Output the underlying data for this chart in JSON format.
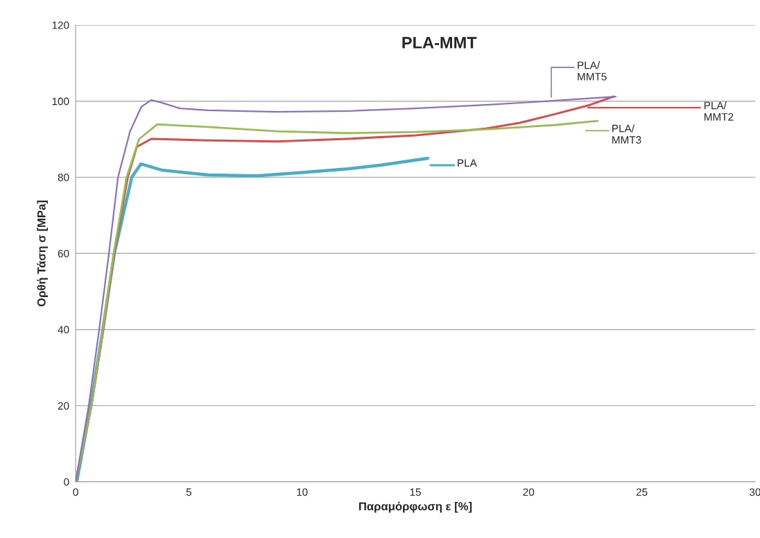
{
  "chart_data": {
    "type": "line",
    "title": "PLA-MMT",
    "xlabel": "Παραμόρφωση ε [%]",
    "ylabel": "Ορθή Τάση σ [MPa]",
    "xlim": [
      0,
      30
    ],
    "xticks": [
      0,
      5,
      10,
      15,
      20,
      25,
      30
    ],
    "ylim": [
      0,
      120
    ],
    "yticks": [
      0,
      20,
      40,
      60,
      80,
      100,
      120
    ],
    "grid": "y",
    "legend": "right",
    "marker": "none",
    "line_style": "solid",
    "series": [
      {
        "name": "PLA/\nMMT5",
        "color": "#8e6fb8",
        "x": [
          0,
          0.58,
          1.04,
          1.47,
          1.87,
          2.4,
          2.9,
          3.34,
          3.8,
          4.6,
          5.85,
          8.9,
          12,
          15,
          18.1,
          21.1,
          23.85
        ],
        "values": [
          0,
          20,
          40,
          60,
          80,
          92,
          98.5,
          100.3,
          99.6,
          98.1,
          97.6,
          97.2,
          97.4,
          98.1,
          99.0,
          100.1,
          101.2
        ]
      },
      {
        "name": "PLA/\nMMT2",
        "color": "#d0504d",
        "x": [
          0,
          0.7,
          1.22,
          1.7,
          2.3,
          2.7,
          3.34,
          5.85,
          8.9,
          12,
          15,
          18.1,
          19.6,
          21.1,
          22.7,
          23.75
        ],
        "values": [
          0,
          20,
          40,
          60,
          80,
          88,
          90.1,
          89.7,
          89.4,
          90.1,
          91.0,
          92.8,
          94.3,
          96.5,
          99.0,
          101.2
        ]
      },
      {
        "name": "PLA/\nMMT3",
        "color": "#9bbb59",
        "x": [
          0,
          0.7,
          1.2,
          1.68,
          2.25,
          2.8,
          3.6,
          5.85,
          8.9,
          12,
          15,
          18.1,
          21.1,
          23.05
        ],
        "values": [
          0,
          20,
          40,
          60,
          80,
          90,
          93.9,
          93.2,
          92.1,
          91.6,
          91.9,
          92.6,
          93.7,
          94.8
        ]
      },
      {
        "name": "PLA",
        "color": "#4bacc6",
        "x": [
          0.05,
          0.67,
          1.2,
          1.71,
          2.48,
          2.88,
          3.8,
          5.85,
          8,
          10.1,
          12,
          13.5,
          15.55
        ],
        "values": [
          0,
          20,
          40,
          60,
          80,
          83.5,
          81.9,
          80.6,
          80.4,
          81.3,
          82.2,
          83.2,
          85.0
        ]
      }
    ]
  }
}
